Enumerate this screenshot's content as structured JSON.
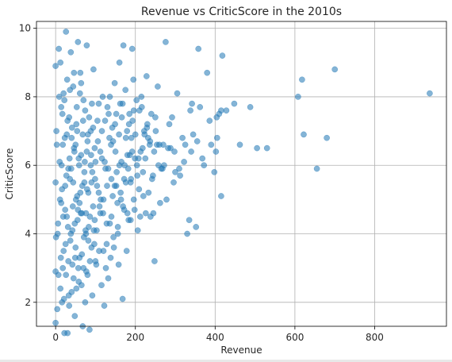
{
  "chart_data": {
    "type": "scatter",
    "title": "Revenue vs CriticScore in the 2010s",
    "xlabel": "Revenue",
    "ylabel": "CriticScore",
    "xlim": [
      -48,
      980
    ],
    "ylim": [
      1.3,
      10.2
    ],
    "xticks": [
      0,
      200,
      400,
      600,
      800
    ],
    "yticks": [
      2,
      4,
      6,
      8,
      10
    ],
    "grid": true,
    "marker_color": "#1f77b4",
    "marker_alpha": 0.55,
    "points": [
      [
        938,
        8.1
      ],
      [
        700,
        8.8
      ],
      [
        680,
        6.8
      ],
      [
        655,
        5.9
      ],
      [
        622,
        6.9
      ],
      [
        618,
        8.5
      ],
      [
        608,
        8.0
      ],
      [
        530,
        6.5
      ],
      [
        505,
        6.5
      ],
      [
        488,
        7.7
      ],
      [
        462,
        6.6
      ],
      [
        448,
        7.8
      ],
      [
        428,
        7.6
      ],
      [
        418,
        9.2
      ],
      [
        415,
        7.6
      ],
      [
        410,
        7.5
      ],
      [
        405,
        6.8
      ],
      [
        402,
        6.4
      ],
      [
        415,
        5.1
      ],
      [
        404,
        7.4
      ],
      [
        380,
        8.7
      ],
      [
        362,
        7.7
      ],
      [
        358,
        9.4
      ],
      [
        355,
        6.7
      ],
      [
        352,
        4.2
      ],
      [
        342,
        7.8
      ],
      [
        340,
        6.4
      ],
      [
        338,
        7.6
      ],
      [
        335,
        4.4
      ],
      [
        330,
        4.0
      ],
      [
        325,
        6.6
      ],
      [
        318,
        6.8
      ],
      [
        312,
        5.7
      ],
      [
        305,
        8.1
      ],
      [
        300,
        5.8
      ],
      [
        296,
        5.5
      ],
      [
        292,
        7.4
      ],
      [
        288,
        6.5
      ],
      [
        282,
        6.5
      ],
      [
        276,
        9.6
      ],
      [
        272,
        6.0
      ],
      [
        268,
        5.9
      ],
      [
        262,
        4.9
      ],
      [
        260,
        6.6
      ],
      [
        256,
        8.3
      ],
      [
        250,
        7.4
      ],
      [
        248,
        3.2
      ],
      [
        245,
        4.6
      ],
      [
        242,
        5.6
      ],
      [
        238,
        4.5
      ],
      [
        236,
        6.6
      ],
      [
        232,
        6.8
      ],
      [
        230,
        7.2
      ],
      [
        228,
        8.6
      ],
      [
        225,
        6.2
      ],
      [
        222,
        7.0
      ],
      [
        220,
        5.1
      ],
      [
        218,
        6.5
      ],
      [
        215,
        8.0
      ],
      [
        212,
        4.5
      ],
      [
        210,
        7.6
      ],
      [
        208,
        6.2
      ],
      [
        205,
        5.7
      ],
      [
        200,
        6.9
      ],
      [
        198,
        4.7
      ],
      [
        195,
        8.5
      ],
      [
        192,
        9.4
      ],
      [
        190,
        6.8
      ],
      [
        188,
        4.4
      ],
      [
        185,
        7.5
      ],
      [
        182,
        5.9
      ],
      [
        180,
        6.3
      ],
      [
        178,
        3.5
      ],
      [
        175,
        8.2
      ],
      [
        172,
        4.7
      ],
      [
        170,
        9.5
      ],
      [
        168,
        2.1
      ],
      [
        165,
        6.1
      ],
      [
        162,
        7.8
      ],
      [
        160,
        9.0
      ],
      [
        158,
        3.1
      ],
      [
        155,
        4.9
      ],
      [
        152,
        5.4
      ],
      [
        150,
        6.4
      ],
      [
        148,
        8.4
      ],
      [
        145,
        3.9
      ],
      [
        142,
        7.1
      ],
      [
        140,
        5.6
      ],
      [
        138,
        3.3
      ],
      [
        135,
        6.8
      ],
      [
        132,
        2.7
      ],
      [
        130,
        7.7
      ],
      [
        128,
        4.3
      ],
      [
        125,
        5.9
      ],
      [
        122,
        1.9
      ],
      [
        120,
        3.5
      ],
      [
        118,
        8.0
      ],
      [
        115,
        2.5
      ],
      [
        112,
        6.4
      ],
      [
        110,
        4.8
      ],
      [
        108,
        5.2
      ],
      [
        105,
        7.3
      ],
      [
        102,
        3.1
      ],
      [
        100,
        6.1
      ],
      [
        98,
        4.4
      ],
      [
        95,
        8.8
      ],
      [
        92,
        2.2
      ],
      [
        90,
        5.5
      ],
      [
        88,
        7.0
      ],
      [
        85,
        1.2
      ],
      [
        82,
        3.8
      ],
      [
        80,
        6.7
      ],
      [
        78,
        9.5
      ],
      [
        76,
        4.6
      ],
      [
        74,
        2.0
      ],
      [
        72,
        5.8
      ],
      [
        70,
        7.9
      ],
      [
        68,
        1.3
      ],
      [
        66,
        3.4
      ],
      [
        64,
        6.3
      ],
      [
        62,
        8.7
      ],
      [
        60,
        4.9
      ],
      [
        58,
        2.6
      ],
      [
        56,
        9.6
      ],
      [
        54,
        5.1
      ],
      [
        52,
        7.2
      ],
      [
        50,
        3.6
      ],
      [
        48,
        1.6
      ],
      [
        46,
        6.5
      ],
      [
        44,
        8.3
      ],
      [
        42,
        4.1
      ],
      [
        40,
        2.3
      ],
      [
        38,
        9.3
      ],
      [
        36,
        5.6
      ],
      [
        34,
        7.4
      ],
      [
        32,
        3.2
      ],
      [
        30,
        1.1
      ],
      [
        28,
        6.9
      ],
      [
        26,
        9.9
      ],
      [
        24,
        4.7
      ],
      [
        22,
        1.1
      ],
      [
        20,
        8.1
      ],
      [
        18,
        3.0
      ],
      [
        16,
        5.3
      ],
      [
        14,
        7.7
      ],
      [
        12,
        2.4
      ],
      [
        10,
        6.1
      ],
      [
        8,
        9.4
      ],
      [
        6,
        4.3
      ],
      [
        4,
        1.8
      ],
      [
        2,
        7.0
      ],
      [
        1,
        3.9
      ],
      [
        0,
        5.5
      ],
      [
        0,
        1.4
      ],
      [
        0,
        2.9
      ],
      [
        0,
        8.9
      ],
      [
        3,
        6.6
      ],
      [
        5,
        4.0
      ],
      [
        7,
        2.8
      ],
      [
        9,
        8.0
      ],
      [
        11,
        5.0
      ],
      [
        13,
        3.3
      ],
      [
        15,
        6.0
      ],
      [
        17,
        7.5
      ],
      [
        19,
        4.5
      ],
      [
        21,
        2.1
      ],
      [
        23,
        6.8
      ],
      [
        25,
        3.7
      ],
      [
        27,
        5.7
      ],
      [
        29,
        8.5
      ],
      [
        31,
        4.2
      ],
      [
        33,
        2.2
      ],
      [
        35,
        6.2
      ],
      [
        37,
        3.8
      ],
      [
        39,
        5.9
      ],
      [
        41,
        7.1
      ],
      [
        43,
        4.8
      ],
      [
        45,
        2.7
      ],
      [
        47,
        6.4
      ],
      [
        49,
        3.3
      ],
      [
        51,
        5.0
      ],
      [
        53,
        7.7
      ],
      [
        55,
        4.4
      ],
      [
        57,
        3.0
      ],
      [
        59,
        6.0
      ],
      [
        61,
        8.1
      ],
      [
        63,
        4.6
      ],
      [
        65,
        2.5
      ],
      [
        67,
        5.4
      ],
      [
        69,
        7.3
      ],
      [
        71,
        3.9
      ],
      [
        73,
        6.1
      ],
      [
        75,
        4.1
      ],
      [
        77,
        2.9
      ],
      [
        79,
        5.3
      ],
      [
        81,
        6.9
      ],
      [
        83,
        4.2
      ],
      [
        86,
        3.2
      ],
      [
        89,
        6.3
      ],
      [
        91,
        7.8
      ],
      [
        94,
        4.8
      ],
      [
        97,
        3.7
      ],
      [
        99,
        5.6
      ],
      [
        103,
        4.1
      ],
      [
        106,
        6.7
      ],
      [
        109,
        3.5
      ],
      [
        113,
        5.0
      ],
      [
        116,
        7.0
      ],
      [
        119,
        4.6
      ],
      [
        123,
        6.1
      ],
      [
        126,
        3.0
      ],
      [
        129,
        5.4
      ],
      [
        133,
        7.5
      ],
      [
        136,
        4.3
      ],
      [
        139,
        6.6
      ],
      [
        143,
        5.1
      ],
      [
        146,
        3.6
      ],
      [
        149,
        7.2
      ],
      [
        153,
        5.8
      ],
      [
        156,
        4.0
      ],
      [
        159,
        6.9
      ],
      [
        163,
        5.2
      ],
      [
        166,
        7.4
      ],
      [
        169,
        4.8
      ],
      [
        173,
        6.0
      ],
      [
        176,
        5.5
      ],
      [
        179,
        7.0
      ],
      [
        183,
        4.4
      ],
      [
        186,
        6.3
      ],
      [
        189,
        5.6
      ],
      [
        193,
        7.3
      ],
      [
        196,
        5.0
      ],
      [
        199,
        6.2
      ],
      [
        203,
        7.9
      ],
      [
        206,
        4.1
      ],
      [
        209,
        5.3
      ],
      [
        213,
        6.4
      ],
      [
        216,
        7.7
      ],
      [
        219,
        5.8
      ],
      [
        223,
        6.9
      ],
      [
        226,
        4.6
      ],
      [
        229,
        7.1
      ],
      [
        233,
        5.2
      ],
      [
        237,
        6.7
      ],
      [
        240,
        7.5
      ],
      [
        244,
        5.7
      ],
      [
        247,
        6.4
      ],
      [
        251,
        7.0
      ],
      [
        254,
        6.6
      ],
      [
        258,
        6.0
      ],
      [
        265,
        5.9
      ],
      [
        270,
        6.6
      ],
      [
        278,
        5.0
      ],
      [
        285,
        7.2
      ],
      [
        298,
        6.4
      ],
      [
        310,
        5.9
      ],
      [
        322,
        6.1
      ],
      [
        345,
        6.9
      ],
      [
        368,
        6.2
      ],
      [
        372,
        6.0
      ],
      [
        386,
        7.3
      ],
      [
        398,
        5.8
      ],
      [
        390,
        6.6
      ],
      [
        12,
        9.0
      ],
      [
        14,
        4.9
      ],
      [
        16,
        2.0
      ],
      [
        18,
        6.6
      ],
      [
        20,
        3.5
      ],
      [
        22,
        7.9
      ],
      [
        24,
        5.4
      ],
      [
        26,
        2.8
      ],
      [
        28,
        4.5
      ],
      [
        30,
        7.3
      ],
      [
        32,
        5.9
      ],
      [
        34,
        1.9
      ],
      [
        36,
        8.2
      ],
      [
        38,
        4.0
      ],
      [
        40,
        6.8
      ],
      [
        42,
        3.1
      ],
      [
        44,
        5.5
      ],
      [
        46,
        8.7
      ],
      [
        48,
        4.3
      ],
      [
        50,
        6.6
      ],
      [
        52,
        2.4
      ],
      [
        54,
        7.0
      ],
      [
        56,
        4.7
      ],
      [
        58,
        6.2
      ],
      [
        60,
        3.3
      ],
      [
        62,
        5.2
      ],
      [
        64,
        8.4
      ],
      [
        66,
        4.6
      ],
      [
        68,
        6.9
      ],
      [
        70,
        3.0
      ],
      [
        72,
        5.5
      ],
      [
        74,
        7.6
      ],
      [
        76,
        4.0
      ],
      [
        78,
        6.4
      ],
      [
        80,
        2.8
      ],
      [
        82,
        5.2
      ],
      [
        84,
        7.4
      ],
      [
        86,
        4.5
      ],
      [
        88,
        6.0
      ],
      [
        90,
        3.6
      ],
      [
        92,
        5.8
      ],
      [
        94,
        7.1
      ],
      [
        96,
        4.1
      ],
      [
        98,
        6.5
      ],
      [
        100,
        3.2
      ],
      [
        104,
        5.4
      ],
      [
        108,
        7.8
      ],
      [
        112,
        4.6
      ],
      [
        116,
        6.2
      ],
      [
        120,
        5.0
      ],
      [
        124,
        7.3
      ],
      [
        128,
        3.7
      ],
      [
        132,
        5.9
      ],
      [
        136,
        8.0
      ],
      [
        140,
        4.5
      ],
      [
        144,
        6.7
      ],
      [
        148,
        5.4
      ],
      [
        152,
        7.5
      ],
      [
        156,
        4.2
      ],
      [
        160,
        6.0
      ],
      [
        164,
        5.0
      ],
      [
        168,
        7.8
      ],
      [
        172,
        5.6
      ],
      [
        176,
        6.8
      ],
      [
        180,
        4.6
      ],
      [
        184,
        7.2
      ],
      [
        188,
        5.5
      ],
      [
        192,
        6.4
      ],
      [
        196,
        7.6
      ],
      [
        204,
        6.0
      ]
    ]
  }
}
